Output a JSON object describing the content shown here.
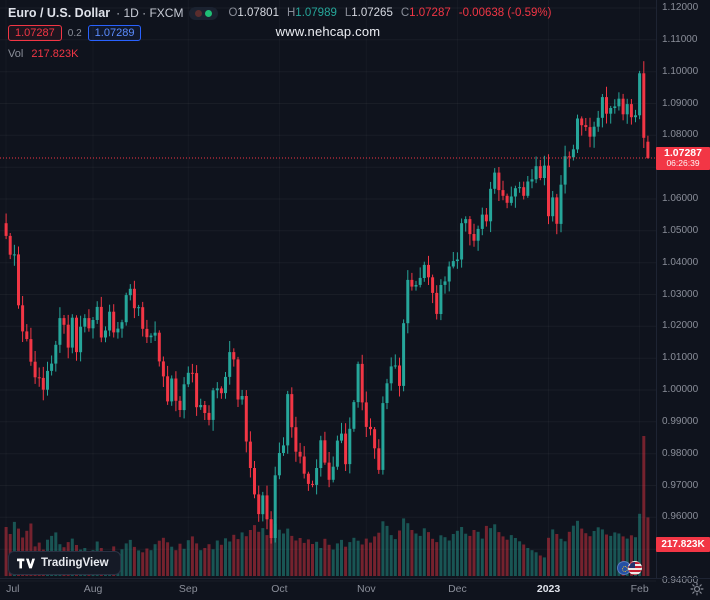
{
  "watermark": "www.nehcap.com",
  "legend": {
    "symbol_title": "Euro / U.S. Dollar",
    "symbol_meta": "· 1D · FXCM",
    "o_label": "O",
    "o_value": "1.07801",
    "h_label": "H",
    "h_value": "1.07989",
    "l_label": "L",
    "l_value": "1.07265",
    "c_label": "C",
    "c_value": "1.07287",
    "change": "-0.00638 (-0.59%)",
    "bid": "1.07287",
    "spread": "0.2",
    "ask": "1.07289",
    "vol_label": "Vol",
    "vol_value": "217.823K"
  },
  "price_scale": {
    "labels": [
      "1.12000",
      "1.11000",
      "1.10000",
      "1.09000",
      "1.08000",
      "1.07000",
      "1.06000",
      "1.05000",
      "1.04000",
      "1.03000",
      "1.02000",
      "1.01000",
      "1.00000",
      "0.99000",
      "0.98000",
      "0.97000",
      "0.96000",
      "0.95000",
      "0.94000"
    ],
    "current_price_label": "1.07287",
    "countdown": "06:26:39",
    "volume_label": "217.823K"
  },
  "time_scale": {
    "labels": [
      {
        "text": "Jul",
        "i": 0
      },
      {
        "text": "Aug",
        "i": 21
      },
      {
        "text": "Sep",
        "i": 44
      },
      {
        "text": "Oct",
        "i": 66
      },
      {
        "text": "Nov",
        "i": 87
      },
      {
        "text": "Dec",
        "i": 109
      },
      {
        "text": "2023",
        "i": 131,
        "major": true
      },
      {
        "text": "Feb",
        "i": 153
      }
    ]
  },
  "footer": {
    "logo_text": "TradingView"
  },
  "colors": {
    "up": "#26a69a",
    "down": "#f23645",
    "axis_text": "#8a8e99",
    "badge": "#f23645"
  },
  "chart_data": {
    "type": "candlestick",
    "title": "Euro / U.S. Dollar",
    "symbol": "EUR/USD",
    "interval": "1D",
    "exchange": "FXCM",
    "ylim": [
      0.94,
      1.12
    ],
    "y_tick_step": 0.01,
    "x_range": [
      "Jul 2022",
      "Feb 2023"
    ],
    "legend_ohlc": {
      "open": 1.07801,
      "high": 1.07989,
      "low": 1.07265,
      "close": 1.07287,
      "change": -0.00638,
      "change_pct": -0.59
    },
    "current_price": 1.07287,
    "countdown": "06:26:39",
    "current_volume_k": 217.823,
    "up_color": "#26a69a",
    "down_color": "#f23645",
    "closes": [
      1.0484,
      1.0425,
      1.0426,
      1.0266,
      1.0184,
      1.016,
      1.0089,
      1.004,
      1.0038,
      1.0001,
      1.006,
      1.0083,
      1.0142,
      1.0226,
      1.0205,
      1.0133,
      1.0227,
      1.0119,
      1.0199,
      1.0226,
      1.0194,
      1.022,
      1.0261,
      1.0165,
      1.0187,
      1.0246,
      1.0181,
      1.0193,
      1.0213,
      1.0298,
      1.0318,
      1.0257,
      1.026,
      1.0192,
      1.0166,
      1.0171,
      1.018,
      1.009,
      1.0043,
      0.9964,
      1.0036,
      0.9966,
      0.9937,
      1.0018,
      1.0054,
      1.0053,
      0.9946,
      0.9953,
      0.9928,
      0.9906,
      0.9999,
      1.0005,
      0.999,
      1.0041,
      1.0119,
      1.0096,
      0.997,
      0.9981,
      0.9838,
      0.9755,
      0.9672,
      0.961,
      0.9669,
      0.9594,
      0.9535,
      0.9732,
      0.9802,
      0.9826,
      0.9987,
      0.9883,
      0.9806,
      0.9791,
      0.9737,
      0.9705,
      0.9702,
      0.9755,
      0.9842,
      0.9772,
      0.9718,
      0.9759,
      0.9841,
      0.9863,
      0.9767,
      0.9878,
      0.9962,
      1.0082,
      0.9961,
      0.9884,
      0.9877,
      0.9817,
      0.9749,
      0.9959,
      1.0021,
      1.0074,
      1.0077,
      1.0013,
      1.021,
      1.0346,
      1.0325,
      1.033,
      1.0352,
      1.0393,
      1.0354,
      1.0305,
      1.0239,
      1.033,
      1.0341,
      1.0388,
      1.0405,
      1.041,
      1.0524,
      1.0537,
      1.049,
      1.0469,
      1.0506,
      1.0551,
      1.053,
      1.0632,
      1.0683,
      1.0628,
      1.061,
      1.0588,
      1.0608,
      1.0634,
      1.0637,
      1.061,
      1.0655,
      1.0662,
      1.0703,
      1.0666,
      1.0705,
      1.0546,
      1.0605,
      1.0522,
      1.0645,
      1.0734,
      1.0731,
      1.0756,
      1.0853,
      1.0832,
      1.0826,
      1.0796,
      1.0827,
      1.0855,
      1.092,
      1.0868,
      1.0886,
      1.0891,
      1.0915,
      1.0866,
      1.0898,
      1.0857,
      1.0863,
      1.0995,
      1.07925,
      1.07287
    ],
    "volumes_k": [
      182,
      156,
      201,
      176,
      143,
      168,
      195,
      110,
      124,
      98,
      135,
      149,
      162,
      118,
      107,
      126,
      139,
      115,
      98,
      104,
      92,
      96,
      128,
      104,
      87,
      92,
      110,
      85,
      99,
      121,
      134,
      108,
      95,
      88,
      102,
      96,
      118,
      131,
      142,
      125,
      109,
      96,
      120,
      101,
      133,
      147,
      121,
      96,
      104,
      118,
      99,
      132,
      116,
      140,
      128,
      153,
      137,
      162,
      148,
      171,
      189,
      164,
      178,
      152,
      166,
      194,
      172,
      158,
      176,
      149,
      132,
      141,
      123,
      136,
      119,
      127,
      104,
      138,
      116,
      98,
      121,
      134,
      109,
      126,
      142,
      131,
      117,
      139,
      124,
      147,
      161,
      203,
      186,
      152,
      137,
      169,
      214,
      196,
      171,
      158,
      149,
      177,
      163,
      138,
      126,
      151,
      144,
      132,
      156,
      168,
      182,
      157,
      149,
      171,
      164,
      139,
      186,
      178,
      192,
      163,
      147,
      135,
      152,
      141,
      129,
      117,
      104,
      96,
      88,
      76,
      69,
      142,
      173,
      156,
      138,
      129,
      164,
      187,
      205,
      176,
      159,
      148,
      167,
      181,
      173,
      154,
      149,
      162,
      158,
      147,
      139,
      151,
      144,
      231,
      520,
      217.823
    ],
    "last_candle": {
      "open": 1.07801,
      "high": 1.07989,
      "low": 1.07265,
      "close": 1.07287
    },
    "peak": {
      "index": 154,
      "high": 1.1033
    }
  }
}
